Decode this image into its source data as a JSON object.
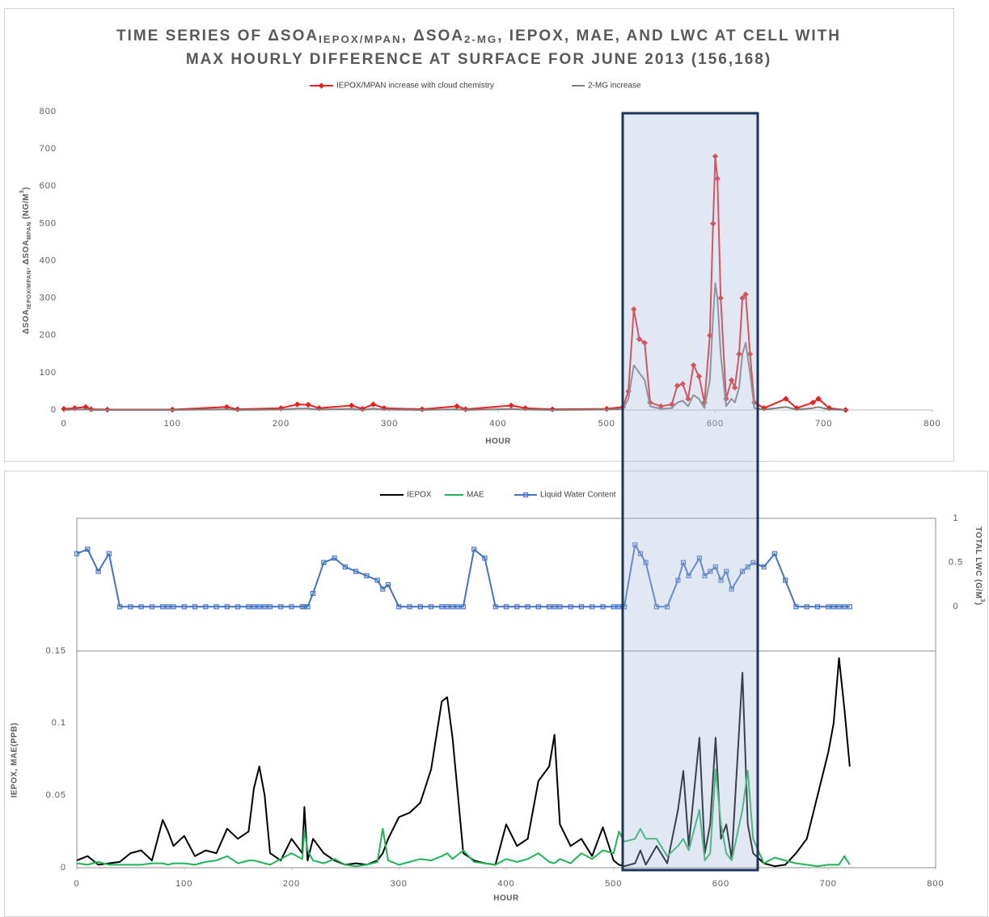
{
  "chart_data": [
    {
      "type": "line",
      "title": [
        [
          {
            "text": "TIME SERIES OF ΔSOA"
          },
          {
            "text": "IEPOX/MPAN",
            "sub": true
          },
          {
            "text": ", ΔSOA"
          },
          {
            "text": "2-MG",
            "sub": true
          },
          {
            "text": ", IEPOX, MAE, AND LWC AT CELL WITH"
          }
        ],
        [
          {
            "text": "MAX HOURLY DIFFERENCE AT SURFACE FOR JUNE 2013 (156,168)"
          }
        ]
      ],
      "xlabel": "HOUR",
      "ylabel": [
        {
          "text": "ΔSOA"
        },
        {
          "text": "IEPOX/MPAN",
          "sub": true
        },
        {
          "text": ", ΔSOA"
        },
        {
          "text": "MPAN",
          "sub": true
        },
        {
          "text": " (NG/M"
        },
        {
          "text": "3",
          "sup": true
        },
        {
          "text": ")"
        }
      ],
      "xlim": [
        0,
        800
      ],
      "xticks": [
        0,
        100,
        200,
        300,
        400,
        500,
        600,
        700,
        800
      ],
      "ylim": [
        0,
        800
      ],
      "yticks": [
        0,
        100,
        200,
        300,
        400,
        500,
        600,
        700,
        800
      ],
      "grid": false,
      "legend": "top",
      "x": [
        0,
        10,
        20,
        25,
        40,
        100,
        150,
        160,
        200,
        215,
        225,
        235,
        265,
        275,
        285,
        295,
        330,
        362,
        370,
        412,
        425,
        450,
        500,
        515,
        520,
        525,
        530,
        535,
        540,
        550,
        560,
        565,
        570,
        575,
        580,
        585,
        590,
        595,
        598,
        600,
        602,
        605,
        610,
        615,
        618,
        622,
        625,
        628,
        632,
        636,
        645,
        665,
        675,
        690,
        695,
        705,
        720
      ],
      "series": [
        {
          "name": "IEPOX/MPAN increase with cloud chemistry",
          "color": "#e8201f",
          "marker": "diamond",
          "values": [
            3,
            5,
            8,
            2,
            1,
            1,
            8,
            2,
            5,
            15,
            14,
            5,
            12,
            3,
            15,
            5,
            2,
            10,
            2,
            12,
            5,
            2,
            3,
            8,
            50,
            270,
            190,
            180,
            20,
            10,
            15,
            65,
            70,
            30,
            120,
            90,
            20,
            200,
            500,
            680,
            620,
            300,
            30,
            80,
            60,
            150,
            300,
            310,
            150,
            20,
            5,
            30,
            5,
            20,
            30,
            5,
            0
          ]
        },
        {
          "name": "2-MG increase",
          "color": "#7f7f7f",
          "marker": "none",
          "values": [
            0,
            1,
            2,
            0,
            0,
            0,
            2,
            0,
            1,
            4,
            4,
            1,
            3,
            0,
            4,
            1,
            0,
            2,
            0,
            3,
            1,
            0,
            1,
            3,
            30,
            120,
            100,
            80,
            10,
            3,
            5,
            20,
            25,
            10,
            40,
            30,
            5,
            80,
            250,
            340,
            300,
            150,
            10,
            30,
            20,
            60,
            150,
            180,
            100,
            5,
            1,
            8,
            1,
            5,
            8,
            1,
            0
          ]
        }
      ]
    },
    {
      "type": "line",
      "xlabel": "HOUR",
      "ylabel": "IEPOX, MAE(PPB)",
      "y2label": [
        {
          "text": "TOTAL LWC (G/M"
        },
        {
          "text": "3",
          "sup": true
        },
        {
          "text": ")"
        }
      ],
      "xlim": [
        0,
        800
      ],
      "xticks": [
        0,
        100,
        200,
        300,
        400,
        500,
        600,
        700,
        800
      ],
      "ylim": [
        0,
        0.15
      ],
      "yticks": [
        0,
        0.05,
        0.1,
        0.15
      ],
      "y2lim": [
        -0.5,
        1
      ],
      "y2ticks": [
        0,
        0.5,
        1
      ],
      "grid": false,
      "legend": "top",
      "x": [
        0,
        10,
        20,
        30,
        40,
        50,
        60,
        70,
        80,
        85,
        90,
        100,
        110,
        120,
        130,
        140,
        150,
        160,
        165,
        170,
        175,
        180,
        190,
        200,
        210,
        212,
        215,
        220,
        230,
        240,
        250,
        260,
        270,
        280,
        285,
        290,
        300,
        310,
        320,
        330,
        340,
        345,
        350,
        355,
        360,
        370,
        380,
        390,
        400,
        410,
        420,
        430,
        440,
        445,
        450,
        460,
        470,
        480,
        490,
        500,
        505,
        510,
        520,
        525,
        530,
        540,
        550,
        560,
        565,
        570,
        580,
        585,
        590,
        595,
        600,
        605,
        610,
        620,
        625,
        630,
        640,
        650,
        660,
        670,
        680,
        690,
        700,
        705,
        710,
        715,
        720
      ],
      "series": [
        {
          "name": "IEPOX",
          "color": "#000000",
          "marker": "none",
          "values": [
            0.005,
            0.008,
            0.002,
            0.003,
            0.004,
            0.01,
            0.012,
            0.005,
            0.033,
            0.025,
            0.015,
            0.022,
            0.008,
            0.012,
            0.01,
            0.027,
            0.02,
            0.025,
            0.055,
            0.07,
            0.05,
            0.01,
            0.005,
            0.02,
            0.01,
            0.042,
            0.005,
            0.02,
            0.01,
            0.005,
            0.002,
            0.003,
            0.002,
            0.005,
            0.01,
            0.02,
            0.035,
            0.038,
            0.045,
            0.068,
            0.115,
            0.118,
            0.09,
            0.05,
            0.01,
            0.005,
            0.003,
            0.002,
            0.03,
            0.015,
            0.02,
            0.06,
            0.07,
            0.092,
            0.03,
            0.015,
            0.02,
            0.008,
            0.028,
            0.005,
            0.002,
            0.001,
            0.003,
            0.012,
            0.002,
            0.015,
            0.003,
            0.04,
            0.067,
            0.015,
            0.09,
            0.01,
            0.03,
            0.09,
            0.02,
            0.03,
            0.006,
            0.135,
            0.03,
            0.01,
            0.003,
            0.001,
            0.002,
            0.01,
            0.02,
            0.05,
            0.08,
            0.1,
            0.145,
            0.11,
            0.07
          ]
        },
        {
          "name": "MAE",
          "color": "#1fb45a",
          "marker": "none",
          "values": [
            0.003,
            0.002,
            0.004,
            0.002,
            0.002,
            0.002,
            0.002,
            0.003,
            0.003,
            0.002,
            0.003,
            0.003,
            0.002,
            0.004,
            0.005,
            0.008,
            0.003,
            0.005,
            0.005,
            0.004,
            0.003,
            0.002,
            0.006,
            0.01,
            0.006,
            0.026,
            0.012,
            0.005,
            0.003,
            0.006,
            0.002,
            0.001,
            0.002,
            0.004,
            0.027,
            0.005,
            0.002,
            0.004,
            0.006,
            0.005,
            0.008,
            0.01,
            0.006,
            0.009,
            0.012,
            0.004,
            0.003,
            0.002,
            0.006,
            0.004,
            0.006,
            0.01,
            0.004,
            0.003,
            0.006,
            0.003,
            0.01,
            0.006,
            0.012,
            0.01,
            0.025,
            0.018,
            0.02,
            0.027,
            0.02,
            0.02,
            0.008,
            0.015,
            0.02,
            0.012,
            0.04,
            0.005,
            0.01,
            0.068,
            0.03,
            0.01,
            0.005,
            0.04,
            0.067,
            0.02,
            0.003,
            0.007,
            0.005,
            0.003,
            0.002,
            0.001,
            0.002,
            0.002,
            0.002,
            0.008,
            0.002
          ]
        },
        {
          "name": "Liquid Water Content",
          "color": "#4472c4",
          "marker": "square",
          "axis": "y2",
          "values": [
            0.6,
            0.65,
            0.4,
            0.6,
            0,
            0,
            0,
            0,
            0,
            0,
            0,
            0,
            0,
            0,
            0,
            0,
            0,
            0,
            0,
            0,
            0,
            0,
            0,
            0,
            0,
            0,
            0,
            0.15,
            0.5,
            0.55,
            0.45,
            0.4,
            0.35,
            0.3,
            0.2,
            0.25,
            0,
            0,
            0,
            0,
            0,
            0,
            0,
            0,
            0,
            0.65,
            0.55,
            0,
            0,
            0,
            0,
            0,
            0,
            0,
            0,
            0,
            0,
            0,
            0,
            0,
            0,
            0,
            0.7,
            0.6,
            0.5,
            0,
            0,
            0.3,
            0.5,
            0.35,
            0.55,
            0.35,
            0.4,
            0.45,
            0.3,
            0.4,
            0.2,
            0.4,
            0.45,
            0.5,
            0.45,
            0.6,
            0.3,
            0,
            0,
            0,
            0,
            0,
            0,
            0,
            0
          ]
        }
      ]
    }
  ]
}
